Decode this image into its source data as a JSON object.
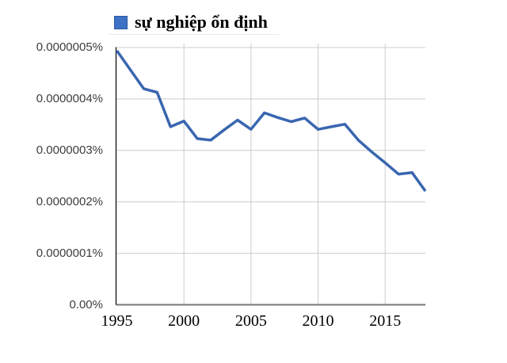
{
  "legend": {
    "label": "sự nghiệp ổn định",
    "swatch_color": "#3e72c4"
  },
  "chart_data": {
    "type": "line",
    "title": "sự nghiệp ổn định",
    "xlabel": "",
    "ylabel": "",
    "xlim": [
      1995,
      2018
    ],
    "ylim_percent": [
      0,
      5e-07
    ],
    "grid": true,
    "legend_position": "top-left",
    "series": [
      {
        "name": "sự nghiệp ổn định",
        "color": "#3a66b0",
        "x": [
          1995,
          1996,
          1997,
          1998,
          1999,
          2000,
          2001,
          2002,
          2003,
          2004,
          2005,
          2006,
          2007,
          2008,
          2009,
          2010,
          2011,
          2012,
          2013,
          2014,
          2015,
          2016,
          2017,
          2018
        ],
        "values_percent": [
          4.94e-07,
          4.57e-07,
          4.2e-07,
          4.13e-07,
          3.46e-07,
          3.57e-07,
          3.23e-07,
          3.2e-07,
          3.4e-07,
          3.59e-07,
          3.41e-07,
          3.73e-07,
          3.64e-07,
          3.56e-07,
          3.63e-07,
          3.41e-07,
          3.46e-07,
          3.51e-07,
          3.2e-07,
          2.97e-07,
          2.76e-07,
          2.54e-07,
          2.57e-07,
          2.21e-07
        ]
      }
    ],
    "x_ticks": [
      {
        "value": 1995,
        "label": "1995"
      },
      {
        "value": 2000,
        "label": "2000"
      },
      {
        "value": 2005,
        "label": "2005"
      },
      {
        "value": 2010,
        "label": "2010"
      },
      {
        "value": 2015,
        "label": "2015"
      }
    ],
    "y_ticks": [
      {
        "value": 0,
        "label": "0.00%"
      },
      {
        "value": 1e-07,
        "label": "0.0000001%"
      },
      {
        "value": 2e-07,
        "label": "0.0000002%"
      },
      {
        "value": 3e-07,
        "label": "0.0000003%"
      },
      {
        "value": 4e-07,
        "label": "0.0000004%"
      },
      {
        "value": 5e-07,
        "label": "0.0000005%"
      }
    ],
    "axis_colors": {
      "grid": "#cccccc",
      "baseline": "#777777",
      "y_axis": "#000000",
      "x_label_color": "#000000",
      "y_label_color": "#3d3d3d"
    }
  }
}
